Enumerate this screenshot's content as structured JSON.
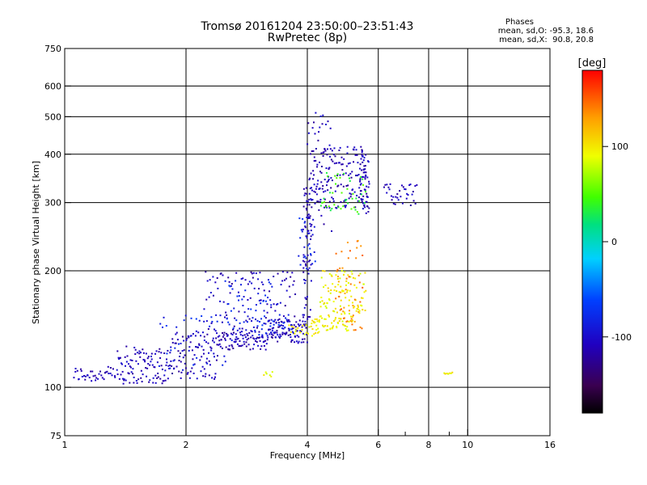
{
  "chart_data": {
    "type": "scatter",
    "title": "Tromsø 20161204 23:50:00–23:51:43",
    "subtitle": "RwPretec (8p)",
    "stats": {
      "heading": "Phases",
      "line1": "mean, sd,O: -95.3, 18.6",
      "line2": "mean, sd,X:  90.8, 20.8"
    },
    "xlabel": "Frequency [MHz]",
    "ylabel": "Stationary phase Virtual Height [km]",
    "xscale": "log",
    "yscale": "log",
    "xlim": [
      1,
      16
    ],
    "ylim": [
      75,
      750
    ],
    "x_ticks": [
      1,
      2,
      4,
      6,
      8,
      10,
      16
    ],
    "x_tick_labels": [
      "1",
      "2",
      "4",
      "6",
      "8",
      "10",
      "16"
    ],
    "x_grid": [
      2,
      4,
      6,
      8,
      10
    ],
    "x_minor": [
      7,
      9
    ],
    "y_ticks": [
      75,
      100,
      200,
      300,
      400,
      500,
      600,
      750
    ],
    "y_tick_labels": [
      "75",
      "100",
      "200",
      "300",
      "400",
      "500",
      "600",
      "750"
    ],
    "y_grid": [
      100,
      200,
      300,
      400,
      500,
      600
    ],
    "grid": true,
    "colorbar": {
      "label": "[deg]",
      "range": [
        -180,
        180
      ],
      "ticks": [
        100,
        0,
        -100
      ],
      "tick_labels": [
        "100",
        "0",
        "-100"
      ],
      "placement": "right"
    },
    "series": [
      {
        "phase_deg": -110,
        "segments": [
          {
            "x0": 1.05,
            "x1": 1.35,
            "y0": 103,
            "y1": 113,
            "n": 40
          },
          {
            "x0": 1.35,
            "x1": 1.85,
            "y0": 102,
            "y1": 128,
            "n": 110
          },
          {
            "x0": 1.85,
            "x1": 2.4,
            "y0": 105,
            "y1": 140,
            "n": 90
          },
          {
            "x0": 2.4,
            "x1": 3.2,
            "y0": 125,
            "y1": 140,
            "n": 90
          },
          {
            "x0": 3.2,
            "x1": 4.0,
            "y0": 130,
            "y1": 150,
            "n": 90
          },
          {
            "x0": 3.9,
            "x1": 4.1,
            "y0": 150,
            "y1": 330,
            "n": 70
          },
          {
            "x0": 4.1,
            "x1": 5.6,
            "y0": 290,
            "y1": 420,
            "n": 140
          },
          {
            "x0": 5.4,
            "x1": 5.7,
            "y0": 280,
            "y1": 420,
            "n": 50
          },
          {
            "x0": 6.2,
            "x1": 7.5,
            "y0": 295,
            "y1": 335,
            "n": 35
          },
          {
            "x0": 2.2,
            "x1": 3.8,
            "y0": 135,
            "y1": 200,
            "n": 120
          },
          {
            "x0": 4.0,
            "x1": 4.6,
            "y0": 250,
            "y1": 520,
            "n": 45
          }
        ]
      },
      {
        "phase_deg": -80,
        "segments": [
          {
            "x0": 1.7,
            "x1": 2.6,
            "y0": 110,
            "y1": 155,
            "n": 40
          },
          {
            "x0": 2.5,
            "x1": 3.3,
            "y0": 140,
            "y1": 190,
            "n": 50
          },
          {
            "x0": 3.0,
            "x1": 3.7,
            "y0": 135,
            "y1": 155,
            "n": 30
          },
          {
            "x0": 3.8,
            "x1": 4.2,
            "y0": 200,
            "y1": 280,
            "n": 25
          }
        ]
      },
      {
        "phase_deg": 40,
        "segments": [
          {
            "x0": 4.3,
            "x1": 5.6,
            "y0": 280,
            "y1": 360,
            "n": 45
          }
        ]
      },
      {
        "phase_deg": 95,
        "segments": [
          {
            "x0": 3.6,
            "x1": 4.3,
            "y0": 135,
            "y1": 145,
            "n": 25
          },
          {
            "x0": 4.1,
            "x1": 5.2,
            "y0": 140,
            "y1": 155,
            "n": 60
          },
          {
            "x0": 4.3,
            "x1": 5.6,
            "y0": 155,
            "y1": 200,
            "n": 90
          },
          {
            "x0": 8.7,
            "x1": 9.2,
            "y0": 108,
            "y1": 110,
            "n": 8
          },
          {
            "x0": 3.1,
            "x1": 3.3,
            "y0": 106,
            "y1": 110,
            "n": 6
          }
        ]
      },
      {
        "phase_deg": 140,
        "segments": [
          {
            "x0": 4.7,
            "x1": 5.5,
            "y0": 140,
            "y1": 240,
            "n": 50
          }
        ]
      }
    ]
  }
}
